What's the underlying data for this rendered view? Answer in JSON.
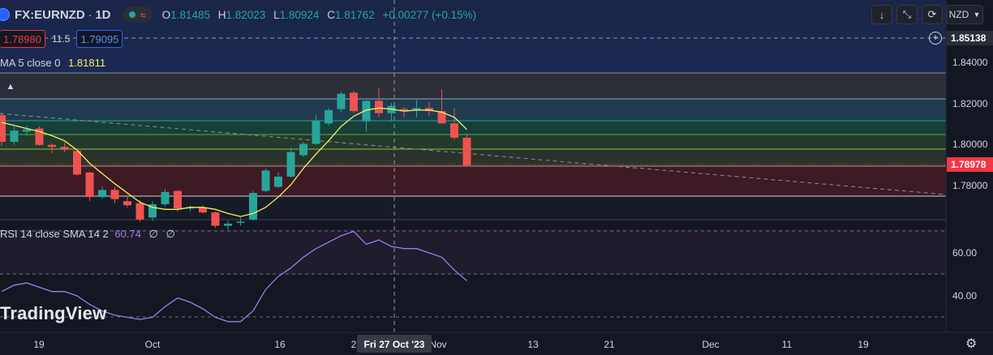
{
  "header": {
    "symbol": "FX:EURNZD",
    "separator": "·",
    "interval": "1D",
    "open_label": "O",
    "open": "1.81485",
    "high_label": "H",
    "high": "1.82023",
    "low_label": "L",
    "low": "1.80924",
    "close_label": "C",
    "close": "1.81762",
    "change": "+0.00277 (+0.15%)"
  },
  "trade": {
    "sell": "1.78980",
    "spread": "11.5",
    "buy": "1.79095"
  },
  "sma": {
    "label": "MA 5 close 0",
    "value": "1.81811"
  },
  "rsi": {
    "label": "RSI 14 close SMA 14 2",
    "value": "60.74",
    "extra1": "∅",
    "extra2": "∅"
  },
  "toolbar": {
    "currency": "NZD"
  },
  "crosshair": {
    "price_label": "1.85138",
    "date_label": "Fri 27 Oct '23"
  },
  "last_price_label": "1.78978",
  "logo_text": "TradingView",
  "colors": {
    "up": "#26a69a",
    "down": "#ef5350",
    "sma": "#f7f35a",
    "rsi": "#9b7ee6",
    "last": "#f23645"
  },
  "chart_data": {
    "type": "candlestick",
    "price_ticks": [
      "1.84000",
      "1.82000",
      "1.80000",
      "1.78000"
    ],
    "rsi_ticks": [
      "60.00",
      "40.00"
    ],
    "x_ticks": [
      "19",
      "Oct",
      "16",
      "2",
      "Nov",
      "13",
      "21",
      "Dec",
      "11",
      "19"
    ],
    "candles": [
      {
        "o": 1.814,
        "h": 1.815,
        "l": 1.799,
        "c": 1.801
      },
      {
        "o": 1.801,
        "h": 1.8085,
        "l": 1.7995,
        "c": 1.8065
      },
      {
        "o": 1.806,
        "h": 1.809,
        "l": 1.804,
        "c": 1.807
      },
      {
        "o": 1.8075,
        "h": 1.8085,
        "l": 1.799,
        "c": 1.7995
      },
      {
        "o": 1.7995,
        "h": 1.8,
        "l": 1.7955,
        "c": 1.7985
      },
      {
        "o": 1.7985,
        "h": 1.8005,
        "l": 1.796,
        "c": 1.7975
      },
      {
        "o": 1.7965,
        "h": 1.7975,
        "l": 1.7845,
        "c": 1.785
      },
      {
        "o": 1.786,
        "h": 1.7865,
        "l": 1.772,
        "c": 1.774
      },
      {
        "o": 1.774,
        "h": 1.779,
        "l": 1.7735,
        "c": 1.7775
      },
      {
        "o": 1.7775,
        "h": 1.779,
        "l": 1.771,
        "c": 1.773
      },
      {
        "o": 1.772,
        "h": 1.7745,
        "l": 1.769,
        "c": 1.77
      },
      {
        "o": 1.771,
        "h": 1.7725,
        "l": 1.762,
        "c": 1.763
      },
      {
        "o": 1.764,
        "h": 1.772,
        "l": 1.7625,
        "c": 1.7705
      },
      {
        "o": 1.7705,
        "h": 1.778,
        "l": 1.7695,
        "c": 1.7765
      },
      {
        "o": 1.777,
        "h": 1.7775,
        "l": 1.767,
        "c": 1.7685
      },
      {
        "o": 1.7685,
        "h": 1.77,
        "l": 1.767,
        "c": 1.769
      },
      {
        "o": 1.769,
        "h": 1.77,
        "l": 1.766,
        "c": 1.7665
      },
      {
        "o": 1.7665,
        "h": 1.767,
        "l": 1.759,
        "c": 1.76
      },
      {
        "o": 1.76,
        "h": 1.7625,
        "l": 1.758,
        "c": 1.761
      },
      {
        "o": 1.7615,
        "h": 1.764,
        "l": 1.76,
        "c": 1.762
      },
      {
        "o": 1.763,
        "h": 1.777,
        "l": 1.7625,
        "c": 1.776
      },
      {
        "o": 1.777,
        "h": 1.788,
        "l": 1.7765,
        "c": 1.787
      },
      {
        "o": 1.779,
        "h": 1.786,
        "l": 1.7785,
        "c": 1.784
      },
      {
        "o": 1.784,
        "h": 1.798,
        "l": 1.7835,
        "c": 1.796
      },
      {
        "o": 1.7945,
        "h": 1.801,
        "l": 1.7935,
        "c": 1.8
      },
      {
        "o": 1.8,
        "h": 1.814,
        "l": 1.7995,
        "c": 1.8115
      },
      {
        "o": 1.81,
        "h": 1.8175,
        "l": 1.809,
        "c": 1.8165
      },
      {
        "o": 1.817,
        "h": 1.8255,
        "l": 1.8155,
        "c": 1.8245
      },
      {
        "o": 1.825,
        "h": 1.826,
        "l": 1.815,
        "c": 1.816
      },
      {
        "o": 1.811,
        "h": 1.8215,
        "l": 1.806,
        "c": 1.821
      },
      {
        "o": 1.821,
        "h": 1.8275,
        "l": 1.813,
        "c": 1.815
      },
      {
        "o": 1.815,
        "h": 1.82,
        "l": 1.811,
        "c": 1.8185
      },
      {
        "o": 1.817,
        "h": 1.818,
        "l": 1.813,
        "c": 1.816
      },
      {
        "o": 1.8165,
        "h": 1.8215,
        "l": 1.813,
        "c": 1.8175
      },
      {
        "o": 1.8175,
        "h": 1.8205,
        "l": 1.8135,
        "c": 1.816
      },
      {
        "o": 1.816,
        "h": 1.8265,
        "l": 1.81,
        "c": 1.81
      },
      {
        "o": 1.81,
        "h": 1.8175,
        "l": 1.802,
        "c": 1.803
      },
      {
        "o": 1.803,
        "h": 1.805,
        "l": 1.789,
        "c": 1.7895
      }
    ],
    "sma": [
      1.8105,
      1.809,
      1.8075,
      1.806,
      1.804,
      1.8015,
      1.797,
      1.7905,
      1.7855,
      1.7805,
      1.776,
      1.7715,
      1.769,
      1.768,
      1.768,
      1.769,
      1.769,
      1.768,
      1.766,
      1.7645,
      1.766,
      1.769,
      1.774,
      1.78,
      1.788,
      1.795,
      1.8015,
      1.8085,
      1.8135,
      1.8165,
      1.8175,
      1.817,
      1.816,
      1.8165,
      1.8165,
      1.8155,
      1.813,
      1.807
    ],
    "rsi": [
      42,
      45,
      46,
      44,
      42,
      42,
      40,
      36,
      33,
      31,
      30,
      29,
      30,
      35,
      39,
      37,
      34,
      30,
      28,
      28,
      33,
      43,
      49,
      53,
      58,
      62,
      65,
      68,
      70,
      64,
      66,
      63,
      62,
      62,
      60,
      58,
      52,
      47
    ]
  }
}
